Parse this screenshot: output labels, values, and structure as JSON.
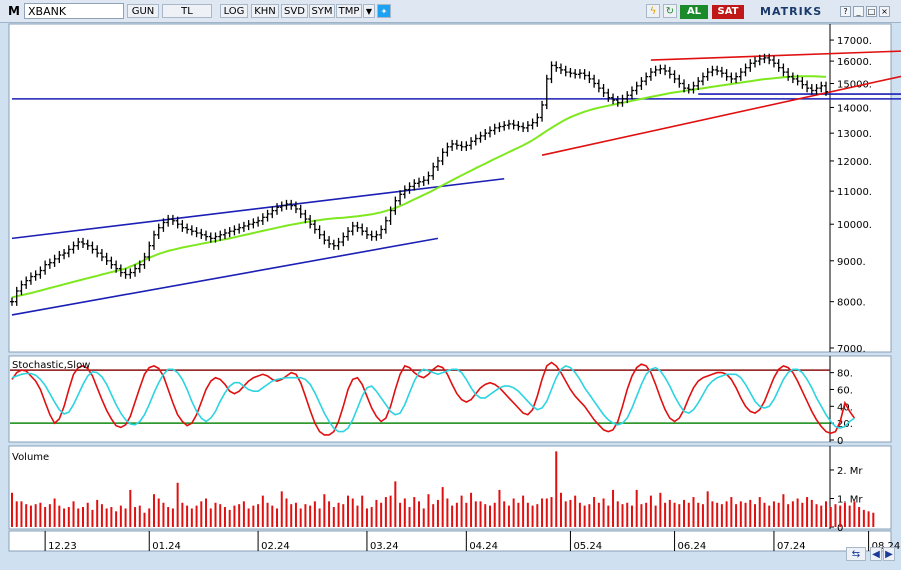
{
  "toolbar": {
    "logo": "M",
    "symbol": "XBANK",
    "buttons": [
      "GUN",
      "TL",
      "LOG",
      "KHN",
      "SVD",
      "SYM",
      "TMP"
    ],
    "buy_label": "AL",
    "sell_label": "SAT",
    "brand": "MATRIKS"
  },
  "colors": {
    "price": "#000000",
    "ma": "#7ee81f",
    "blue_trend": "#1b1fb5",
    "red_trend": "#e01010",
    "stoch_k": "#e01010",
    "stoch_d": "#2cd4e0",
    "overbought": "#8a1010",
    "oversold": "#118a11",
    "volume": "#e01010",
    "panel_bg": "#ffffff",
    "frame_bg": "#cfe0f0"
  },
  "chart_data": [
    {
      "type": "ohlc",
      "x_tick_labels": [
        "12.23",
        "01.24",
        "02.24",
        "03.24",
        "04.24",
        "05.24",
        "06.24",
        "07.24",
        "08.24"
      ],
      "x_tick_index": [
        7,
        29,
        52,
        75,
        96,
        118,
        140,
        161,
        181
      ],
      "y_tick_labels": [
        "7000.",
        "8000.",
        "9000.",
        "10000.",
        "11000.",
        "12000.",
        "13000.",
        "14000.",
        "15000.",
        "16000.",
        "17000."
      ],
      "y_ticks": [
        7000,
        8000,
        9000,
        10000,
        11000,
        12000,
        13000,
        14000,
        15000,
        16000,
        17000
      ],
      "ylim": [
        7000,
        17500
      ],
      "yscale": "log",
      "grid": false,
      "close": [
        8000,
        8250,
        8400,
        8500,
        8600,
        8650,
        8750,
        8900,
        8950,
        9050,
        9150,
        9200,
        9300,
        9400,
        9500,
        9450,
        9400,
        9300,
        9200,
        9100,
        9000,
        8900,
        8800,
        8700,
        8650,
        8700,
        8800,
        8900,
        9100,
        9400,
        9700,
        9900,
        10050,
        10150,
        10100,
        10000,
        9900,
        9850,
        9800,
        9750,
        9700,
        9650,
        9600,
        9650,
        9700,
        9750,
        9800,
        9850,
        9900,
        9950,
        10000,
        10050,
        10100,
        10200,
        10300,
        10400,
        10500,
        10550,
        10600,
        10550,
        10450,
        10300,
        10150,
        10000,
        9850,
        9700,
        9550,
        9450,
        9400,
        9500,
        9650,
        9800,
        9950,
        9900,
        9800,
        9700,
        9650,
        9700,
        9850,
        10100,
        10400,
        10700,
        10900,
        11050,
        11150,
        11250,
        11300,
        11350,
        11500,
        11800,
        12000,
        12300,
        12500,
        12600,
        12550,
        12500,
        12550,
        12700,
        12800,
        12900,
        13000,
        13100,
        13200,
        13250,
        13300,
        13350,
        13300,
        13250,
        13200,
        13300,
        13400,
        13600,
        14100,
        15200,
        15800,
        15700,
        15600,
        15500,
        15450,
        15400,
        15450,
        15350,
        15200,
        15000,
        14800,
        14600,
        14400,
        14300,
        14200,
        14350,
        14500,
        14700,
        14900,
        15100,
        15300,
        15500,
        15600,
        15650,
        15550,
        15400,
        15200,
        15000,
        14800,
        14750,
        14900,
        15100,
        15300,
        15500,
        15600,
        15550,
        15450,
        15300,
        15200,
        15300,
        15500,
        15700,
        15900,
        16000,
        16100,
        16150,
        16050,
        15900,
        15700,
        15500,
        15300,
        15200,
        15100,
        14950,
        14800,
        14700,
        14800,
        14900,
        14650
      ],
      "ma": [
        8100,
        8125,
        8150,
        8175,
        8200,
        8230,
        8260,
        8290,
        8320,
        8350,
        8380,
        8410,
        8440,
        8470,
        8500,
        8530,
        8560,
        8590,
        8620,
        8650,
        8680,
        8710,
        8740,
        8770,
        8800,
        8850,
        8900,
        8960,
        9020,
        9080,
        9130,
        9180,
        9220,
        9260,
        9290,
        9320,
        9350,
        9375,
        9400,
        9425,
        9450,
        9475,
        9500,
        9525,
        9550,
        9575,
        9600,
        9630,
        9660,
        9690,
        9720,
        9750,
        9780,
        9810,
        9840,
        9870,
        9900,
        9930,
        9960,
        9985,
        10010,
        10035,
        10060,
        10080,
        10100,
        10120,
        10140,
        10155,
        10170,
        10180,
        10190,
        10200,
        10215,
        10230,
        10250,
        10270,
        10290,
        10320,
        10350,
        10390,
        10430,
        10480,
        10540,
        10600,
        10670,
        10740,
        10810,
        10880,
        10950,
        11030,
        11110,
        11190,
        11270,
        11350,
        11430,
        11510,
        11590,
        11670,
        11750,
        11830,
        11910,
        11990,
        12070,
        12150,
        12230,
        12310,
        12390,
        12470,
        12550,
        12640,
        12740,
        12850,
        12970,
        13090,
        13200,
        13310,
        13420,
        13520,
        13610,
        13690,
        13760,
        13830,
        13890,
        13940,
        13990,
        14030,
        14070,
        14110,
        14150,
        14190,
        14230,
        14270,
        14310,
        14350,
        14390,
        14430,
        14470,
        14510,
        14550,
        14590,
        14620,
        14650,
        14680,
        14710,
        14740,
        14770,
        14800,
        14830,
        14860,
        14890,
        14920,
        14950,
        14980,
        15010,
        15040,
        15070,
        15100,
        15130,
        15160,
        15190,
        15210,
        15230,
        15250,
        15270,
        15290,
        15300,
        15310,
        15320,
        15320,
        15320,
        15310,
        15300,
        15290
      ],
      "trendlines": [
        {
          "color": "blue",
          "from": [
            0,
            9600
          ],
          "to": [
            104,
            11400
          ]
        },
        {
          "color": "blue",
          "from": [
            0,
            7700
          ],
          "to": [
            90,
            9600
          ]
        },
        {
          "color": "blue",
          "from": [
            0,
            14350
          ],
          "to": [
            188,
            14350
          ]
        },
        {
          "color": "blue",
          "from": [
            145,
            14550
          ],
          "to": [
            193,
            14550
          ]
        },
        {
          "color": "red",
          "from": [
            112,
            12200
          ],
          "to": [
            192,
            15500
          ]
        },
        {
          "color": "red",
          "from": [
            135,
            16050
          ],
          "to": [
            192,
            16500
          ]
        }
      ],
      "annotations": []
    },
    {
      "type": "line",
      "title": "Stochastic,Slow",
      "y_tick_labels": [
        "80.",
        "60.",
        "40.",
        "20.",
        "0"
      ],
      "y_ticks": [
        80,
        60,
        40,
        20,
        0
      ],
      "ylim": [
        0,
        95
      ],
      "hlines": [
        83,
        20
      ],
      "series": [
        {
          "values": [
            72,
            80,
            83,
            82,
            76,
            70,
            60,
            45,
            30,
            20,
            25,
            40,
            60,
            78,
            86,
            88,
            85,
            76,
            62,
            48,
            35,
            25,
            17,
            15,
            18,
            28,
            45,
            62,
            78,
            86,
            88,
            85,
            76,
            60,
            44,
            30,
            22,
            17,
            20,
            30,
            45,
            60,
            70,
            74,
            72,
            66,
            58,
            55,
            58,
            64,
            70,
            74,
            76,
            78,
            76,
            72,
            70,
            72,
            76,
            80,
            78,
            68,
            52,
            35,
            20,
            10,
            6,
            6,
            10,
            22,
            40,
            60,
            72,
            74,
            66,
            52,
            38,
            28,
            22,
            26,
            40,
            60,
            78,
            88,
            86,
            80,
            76,
            74,
            78,
            84,
            88,
            86,
            78,
            66,
            55,
            48,
            45,
            48,
            55,
            62,
            66,
            68,
            66,
            62,
            56,
            50,
            44,
            38,
            32,
            30,
            36,
            52,
            72,
            88,
            92,
            88,
            80,
            70,
            60,
            52,
            46,
            40,
            32,
            24,
            18,
            12,
            10,
            12,
            22,
            40,
            60,
            76,
            86,
            90,
            88,
            80,
            66,
            50,
            36,
            26,
            22,
            26,
            36,
            50,
            62,
            70,
            74,
            76,
            78,
            80,
            80,
            78,
            72,
            62,
            50,
            40,
            34,
            32,
            36,
            46,
            60,
            74,
            84,
            88,
            86,
            80,
            70,
            58,
            46,
            34,
            24,
            16,
            10,
            8,
            10,
            22,
            44,
            34,
            26
          ]
        },
        {
          "values": [
            74,
            76,
            78,
            79,
            79,
            77,
            72,
            65,
            55,
            45,
            36,
            31,
            33,
            42,
            54,
            66,
            76,
            81,
            80,
            75,
            66,
            54,
            42,
            32,
            24,
            19,
            18,
            22,
            30,
            42,
            56,
            68,
            78,
            84,
            84,
            80,
            72,
            60,
            46,
            34,
            26,
            22,
            26,
            34,
            46,
            56,
            64,
            68,
            68,
            64,
            60,
            58,
            58,
            62,
            66,
            70,
            72,
            73,
            74,
            74,
            74,
            74,
            72,
            66,
            56,
            44,
            32,
            22,
            14,
            10,
            10,
            14,
            24,
            38,
            52,
            62,
            64,
            58,
            50,
            42,
            34,
            30,
            32,
            42,
            56,
            70,
            80,
            84,
            82,
            80,
            78,
            80,
            82,
            84,
            84,
            80,
            72,
            62,
            54,
            50,
            50,
            54,
            58,
            62,
            64,
            64,
            62,
            58,
            52,
            46,
            40,
            36,
            38,
            46,
            60,
            74,
            84,
            88,
            86,
            80,
            72,
            62,
            54,
            46,
            38,
            30,
            24,
            20,
            18,
            20,
            26,
            38,
            52,
            66,
            78,
            84,
            86,
            82,
            74,
            64,
            52,
            42,
            34,
            32,
            36,
            44,
            54,
            64,
            70,
            74,
            76,
            78,
            78,
            78,
            74,
            66,
            56,
            46,
            40,
            38,
            40,
            48,
            60,
            72,
            80,
            84,
            84,
            80,
            72,
            62,
            50,
            40,
            30,
            22,
            16,
            14,
            16,
            22,
            26
          ]
        }
      ]
    },
    {
      "type": "bar",
      "title": "Volume",
      "y_tick_labels": [
        "2. Mr",
        "1. Mr",
        "0"
      ],
      "y_ticks": [
        2000000000,
        1000000000,
        0
      ],
      "ylim": [
        0,
        2700000000
      ],
      "values": [
        1200000000,
        900000000,
        900000000,
        800000000,
        750000000,
        800000000,
        850000000,
        700000000,
        800000000,
        1000000000,
        750000000,
        650000000,
        700000000,
        900000000,
        650000000,
        700000000,
        850000000,
        600000000,
        950000000,
        800000000,
        650000000,
        700000000,
        550000000,
        750000000,
        650000000,
        1300000000,
        700000000,
        750000000,
        500000000,
        650000000,
        1150000000,
        1000000000,
        850000000,
        700000000,
        650000000,
        1550000000,
        850000000,
        750000000,
        650000000,
        750000000,
        900000000,
        1000000000,
        650000000,
        850000000,
        800000000,
        700000000,
        600000000,
        750000000,
        800000000,
        900000000,
        650000000,
        750000000,
        800000000,
        1100000000,
        850000000,
        750000000,
        650000000,
        1250000000,
        1000000000,
        800000000,
        850000000,
        650000000,
        800000000,
        750000000,
        900000000,
        650000000,
        1150000000,
        900000000,
        700000000,
        850000000,
        800000000,
        1100000000,
        1000000000,
        750000000,
        1100000000,
        650000000,
        700000000,
        950000000,
        850000000,
        1050000000,
        1100000000,
        1600000000,
        850000000,
        1000000000,
        700000000,
        1050000000,
        900000000,
        650000000,
        1150000000,
        800000000,
        950000000,
        1400000000,
        1000000000,
        750000000,
        850000000,
        1100000000,
        850000000,
        1200000000,
        900000000,
        900000000,
        800000000,
        750000000,
        850000000,
        1300000000,
        900000000,
        750000000,
        1000000000,
        850000000,
        1100000000,
        850000000,
        750000000,
        800000000,
        1000000000,
        1000000000,
        1050000000,
        2650000000,
        1200000000,
        900000000,
        950000000,
        1100000000,
        850000000,
        750000000,
        800000000,
        1050000000,
        850000000,
        1000000000,
        750000000,
        1300000000,
        900000000,
        800000000,
        850000000,
        750000000,
        1300000000,
        800000000,
        850000000,
        1100000000,
        750000000,
        1200000000,
        850000000,
        950000000,
        850000000,
        800000000,
        950000000,
        850000000,
        1050000000,
        850000000,
        800000000,
        1250000000,
        900000000,
        850000000,
        800000000,
        900000000,
        1050000000,
        800000000,
        900000000,
        850000000,
        950000000,
        800000000,
        1050000000,
        850000000,
        750000000,
        900000000,
        850000000,
        1150000000,
        800000000,
        900000000,
        1000000000,
        850000000,
        1050000000,
        950000000,
        800000000,
        750000000,
        900000000,
        700000000,
        800000000,
        750000000,
        850000000,
        750000000,
        900000000,
        700000000,
        600000000,
        550000000,
        500000000
      ]
    }
  ]
}
